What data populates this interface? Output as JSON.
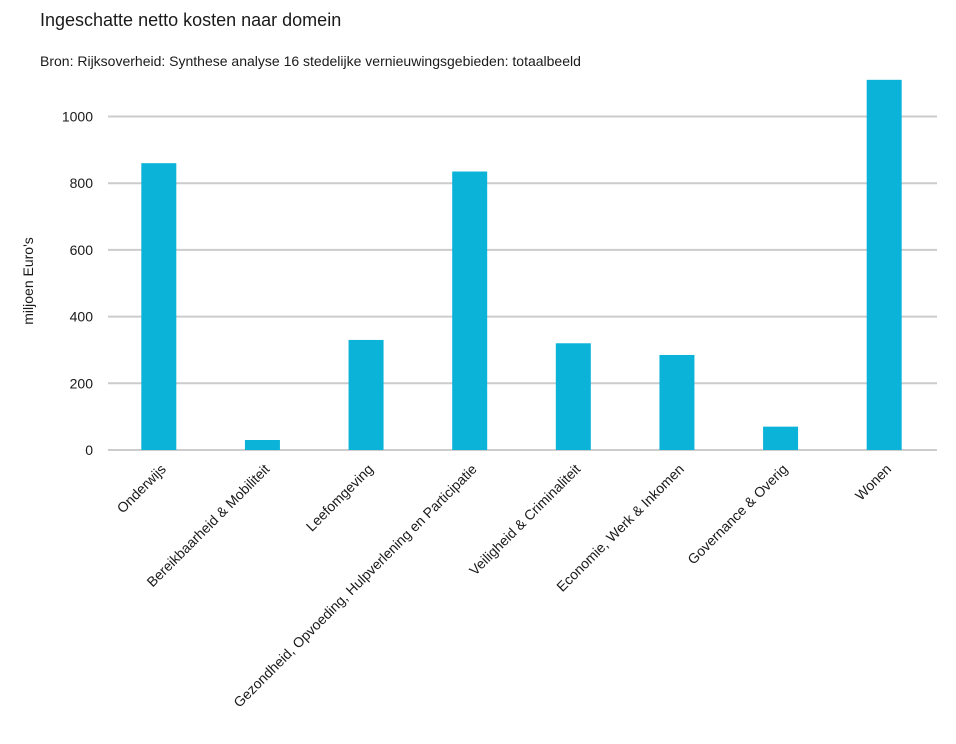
{
  "chart_data": {
    "type": "bar",
    "title": "Ingeschatte netto kosten naar domein",
    "subtitle": "Bron: Rijksoverheid: Synthese analyse 16 stedelijke vernieuwingsgebieden: totaalbeeld",
    "xlabel": "",
    "ylabel": "miljoen Euro's",
    "ylim": [
      0,
      1100
    ],
    "yticks": [
      0,
      200,
      400,
      600,
      800,
      1000
    ],
    "grid": true,
    "legend": "none",
    "categories": [
      "Onderwijs",
      "Bereikbaarheid & Mobiliteit",
      "Leefomgeving",
      "Gezondheid, Opvoeding, Hulpverlening en Participatie",
      "Veiligheid & Criminaliteit",
      "Economie, Werk & Inkomen",
      "Governance & Overig",
      "Wonen"
    ],
    "values": [
      860,
      30,
      330,
      835,
      320,
      285,
      70,
      1110
    ],
    "colors": {
      "bar": "#0bb3d9",
      "grid": "#cccccc",
      "text": "#1a1a1a"
    }
  }
}
